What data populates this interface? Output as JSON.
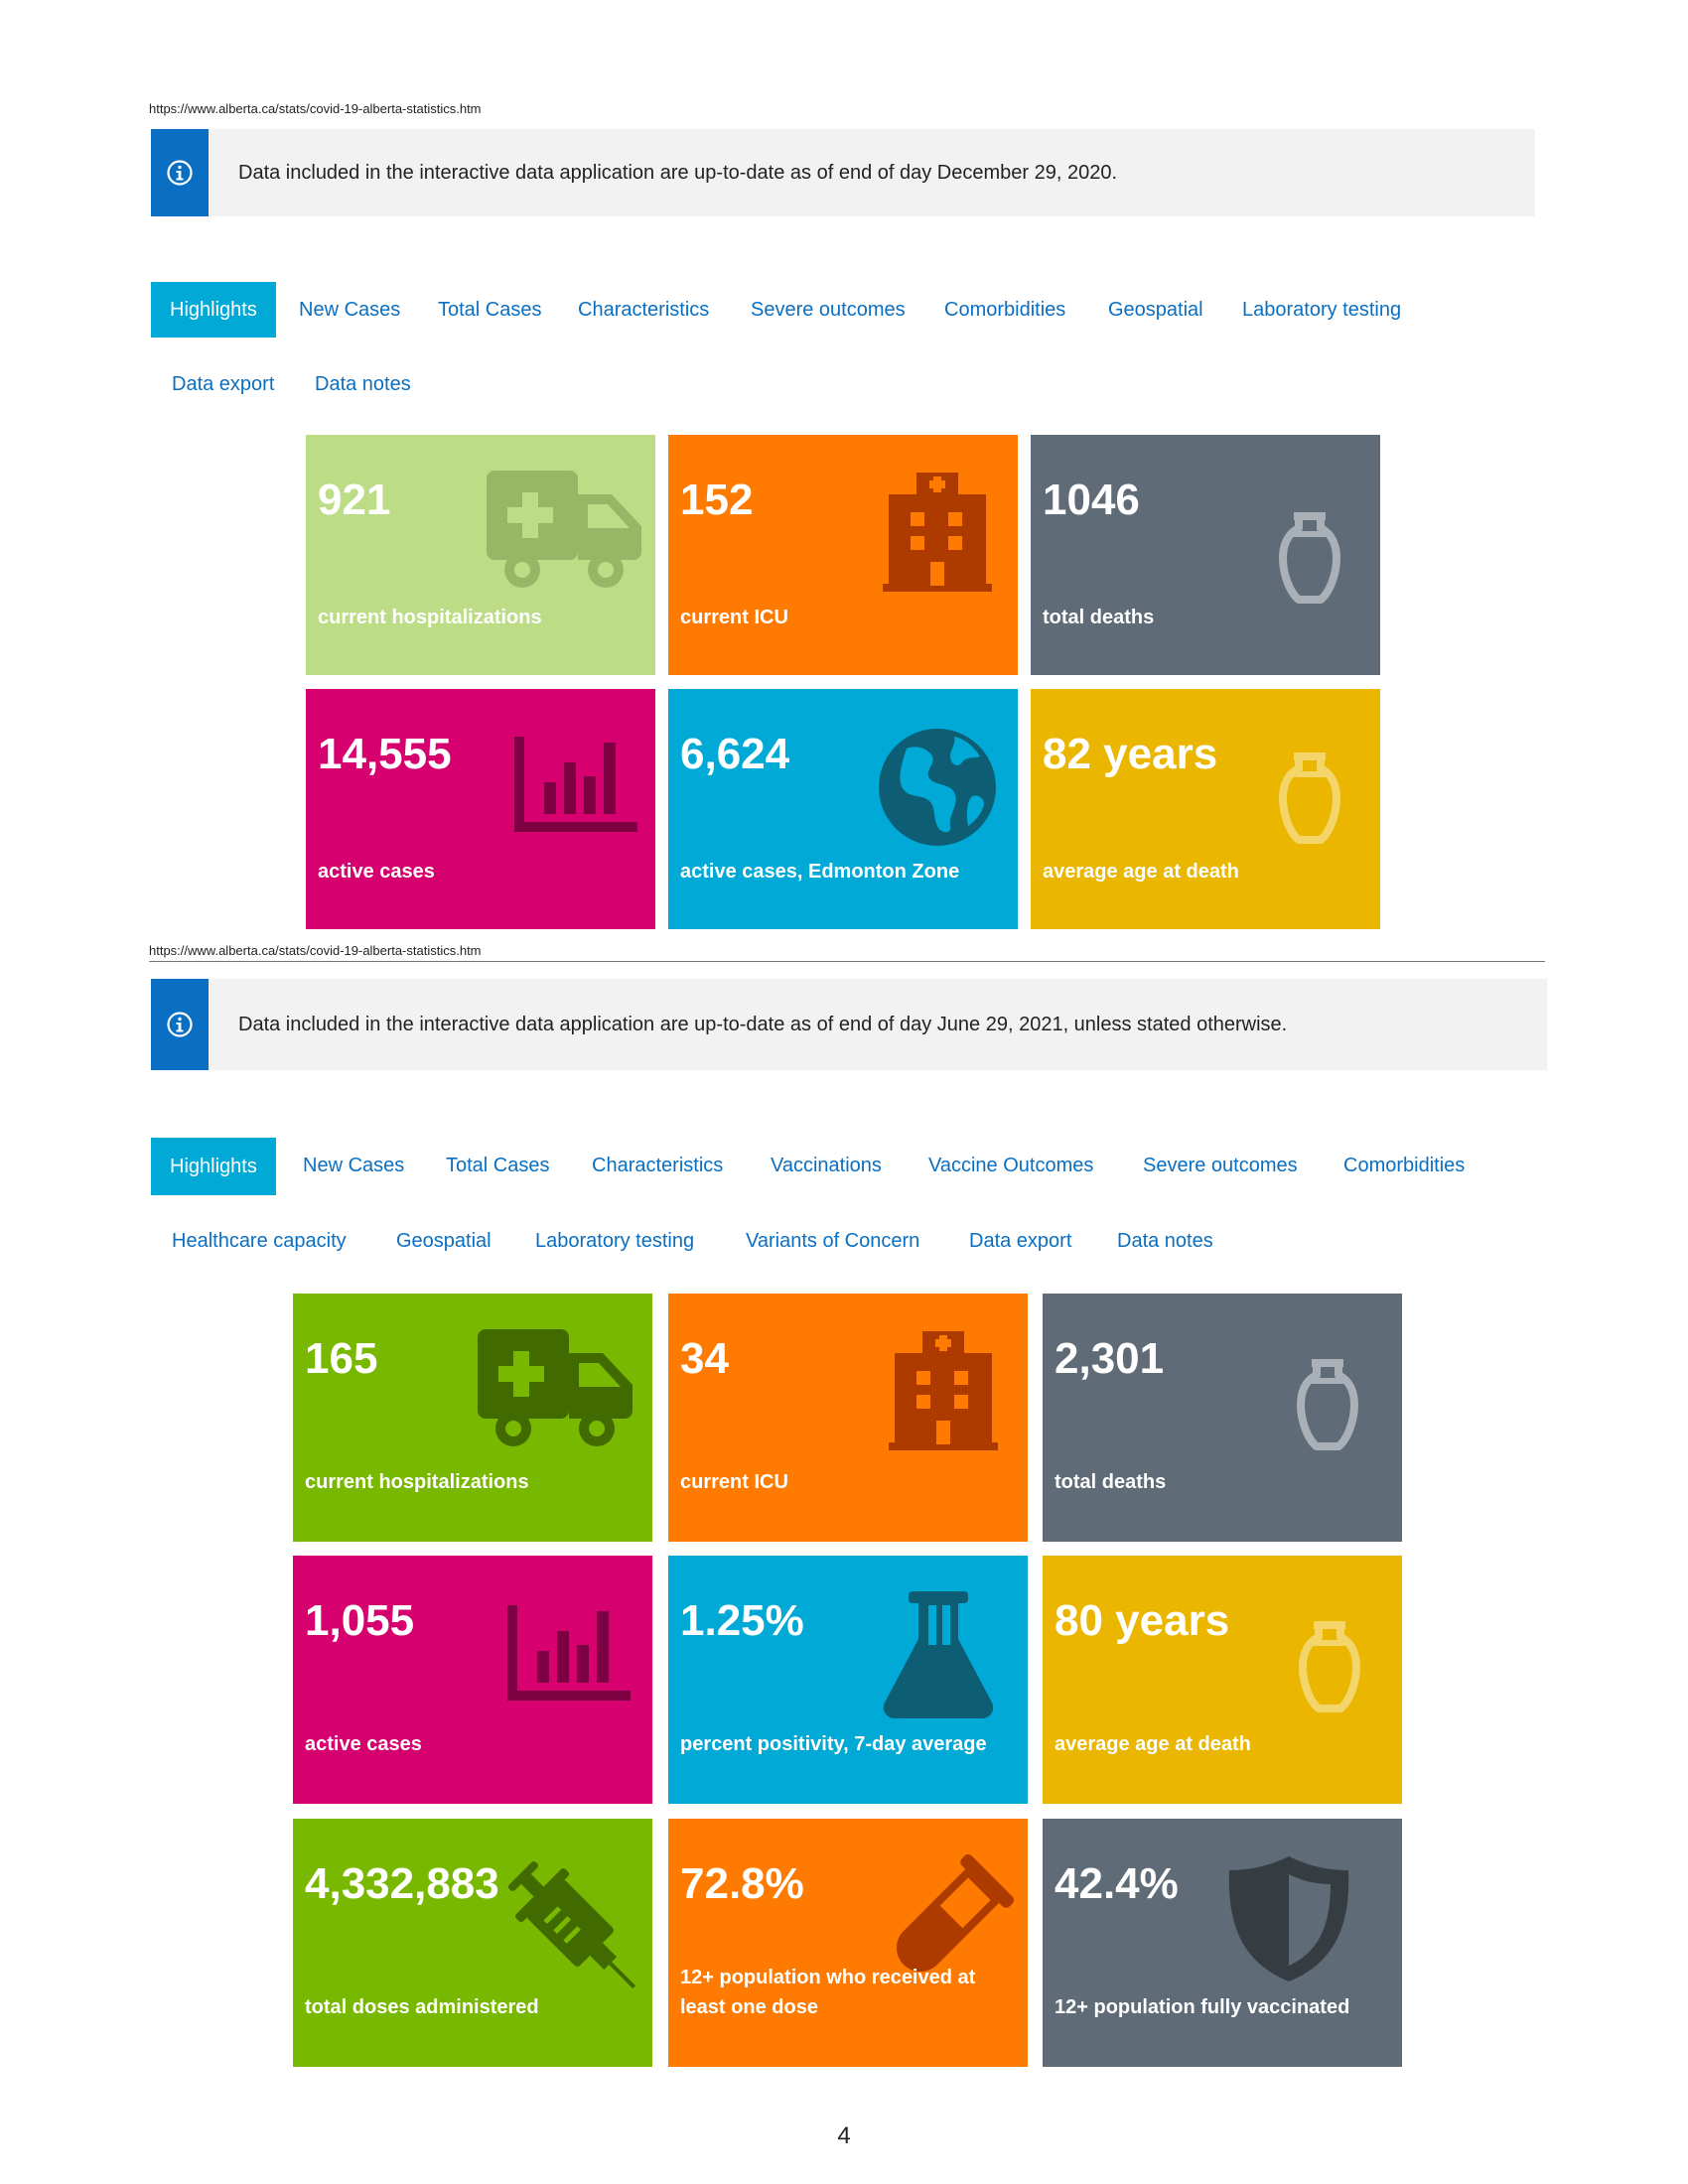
{
  "page_number": "4",
  "section1": {
    "url": "https://www.alberta.ca/stats/covid-19-alberta-statistics.htm",
    "info_text": "Data included in the interactive data application are up-to-date as of end of day December 29, 2020.",
    "tabs": [
      "Highlights",
      "New Cases",
      "Total Cases",
      "Characteristics",
      "Severe outcomes",
      "Comorbidities",
      "Geospatial",
      "Laboratory testing",
      "Data export",
      "Data notes"
    ],
    "tiles": [
      {
        "value": "921",
        "label": "current hospitalizations",
        "color": "#bcdd86",
        "icon": "ambulance-icon"
      },
      {
        "value": "152",
        "label": "current ICU",
        "color": "#ff7a00",
        "icon": "hospital-icon"
      },
      {
        "value": "1046",
        "label": "total deaths",
        "color": "#5f6b76",
        "icon": "urn-icon"
      },
      {
        "value": "14,555",
        "label": "active cases",
        "color": "#d6006f",
        "icon": "bar-chart-icon"
      },
      {
        "value": "6,624",
        "label": "active cases, Edmonton Zone",
        "color": "#00a9d6",
        "icon": "globe-icon"
      },
      {
        "value": "82 years",
        "label": "average age at death",
        "color": "#eab600",
        "icon": "urn-icon"
      }
    ]
  },
  "section2": {
    "url": "https://www.alberta.ca/stats/covid-19-alberta-statistics.htm",
    "info_text": "Data included in the interactive data application are up-to-date as of end of day June 29, 2021, unless stated otherwise.",
    "tabs": [
      "Highlights",
      "New Cases",
      "Total Cases",
      "Characteristics",
      "Vaccinations",
      "Vaccine Outcomes",
      "Severe outcomes",
      "Comorbidities",
      "Healthcare capacity",
      "Geospatial",
      "Laboratory testing",
      "Variants of Concern",
      "Data export",
      "Data notes"
    ],
    "tiles": [
      {
        "value": "165",
        "label": "current hospitalizations",
        "color": "#78b800",
        "icon": "ambulance-icon"
      },
      {
        "value": "34",
        "label": "current ICU",
        "color": "#ff7a00",
        "icon": "hospital-icon"
      },
      {
        "value": "2,301",
        "label": "total deaths",
        "color": "#5f6b76",
        "icon": "urn-icon"
      },
      {
        "value": "1,055",
        "label": "active cases",
        "color": "#d6006f",
        "icon": "bar-chart-icon"
      },
      {
        "value": "1.25%",
        "label": "percent positivity, 7-day average",
        "color": "#00a9d6",
        "icon": "flask-icon"
      },
      {
        "value": "80 years",
        "label": "average age at death",
        "color": "#eab600",
        "icon": "urn-icon"
      },
      {
        "value": "4,332,883",
        "label": "total doses administered",
        "color": "#78b800",
        "icon": "syringe-icon"
      },
      {
        "value": "72.8%",
        "label_line1": "12+ population who received at",
        "label_line2": "least one dose",
        "color": "#ff7a00",
        "icon": "test-tube-icon"
      },
      {
        "value": "42.4%",
        "label": "12+ population fully vaccinated",
        "color": "#5f6b76",
        "icon": "shield-icon"
      }
    ]
  }
}
